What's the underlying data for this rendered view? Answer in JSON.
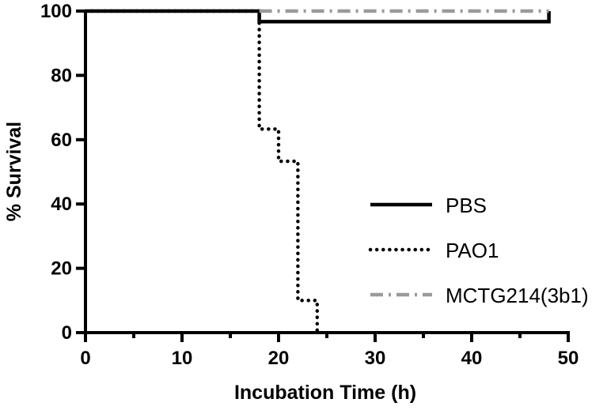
{
  "chart_data": {
    "type": "line",
    "subtype": "kaplan-meier-step",
    "xlabel": "Incubation Time (h)",
    "ylabel": "% Survival",
    "xlim": [
      0,
      50
    ],
    "ylim": [
      0,
      100
    ],
    "xticks": [
      0,
      10,
      20,
      30,
      40,
      50
    ],
    "xticks_minor": [
      5,
      15,
      25,
      35,
      45
    ],
    "yticks": [
      0,
      20,
      40,
      60,
      80,
      100
    ],
    "grid": false,
    "legend_position": "right",
    "series": [
      {
        "name": "PBS",
        "color": "#000000",
        "style": "solid",
        "points": [
          [
            0,
            100
          ],
          [
            18,
            100
          ],
          [
            18,
            96.7
          ],
          [
            48,
            96.7
          ],
          [
            48,
            100
          ]
        ]
      },
      {
        "name": "PAO1",
        "color": "#000000",
        "style": "dotted",
        "points": [
          [
            0,
            100
          ],
          [
            18,
            100
          ],
          [
            18,
            63.3
          ],
          [
            20,
            63.3
          ],
          [
            20,
            53.3
          ],
          [
            22,
            53.3
          ],
          [
            22,
            10
          ],
          [
            24,
            10
          ],
          [
            24,
            0
          ]
        ]
      },
      {
        "name": "MCTG214(3b1)",
        "color": "#9a9a9a",
        "style": "dash-dot",
        "points": [
          [
            18,
            100
          ],
          [
            48,
            100
          ]
        ]
      }
    ]
  }
}
